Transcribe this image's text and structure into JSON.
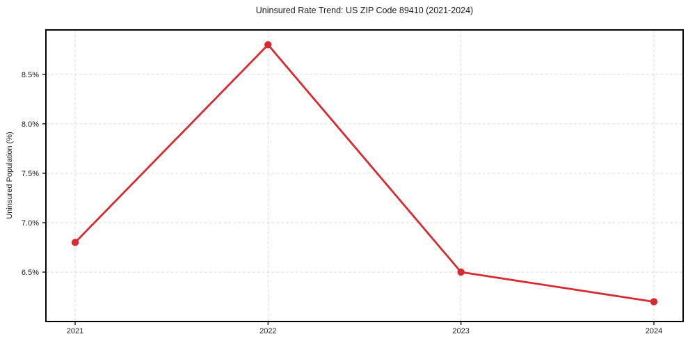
{
  "chart_data": {
    "type": "line",
    "title": "Uninsured Rate Trend: US ZIP Code 89410 (2021-2024)",
    "xlabel": "",
    "ylabel": "Uninsured Population (%)",
    "categories": [
      "2021",
      "2022",
      "2023",
      "2024"
    ],
    "values": [
      6.8,
      8.8,
      6.5,
      6.2
    ],
    "ytick_values": [
      6.5,
      7.0,
      7.5,
      8.0,
      8.5
    ],
    "ytick_labels": [
      "6.5%",
      "7.0%",
      "7.5%",
      "8.0%",
      "8.5%"
    ],
    "ylim": [
      6.0,
      8.95
    ],
    "grid": true,
    "grid_style": "dashed",
    "legend": false,
    "marker": "circle",
    "colors": {
      "line": "#d62b30",
      "marker": "#d62b30",
      "grid": "#dcdcdc",
      "axis": "#000000",
      "text": "#1a1a1a",
      "background": "#ffffff"
    }
  }
}
